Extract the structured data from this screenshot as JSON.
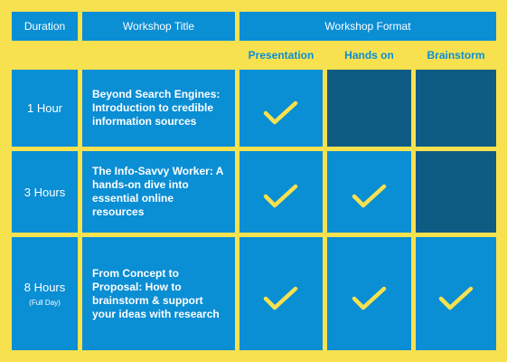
{
  "colors": {
    "border": "#f7e14f",
    "cell": "#0a8ed4",
    "cell_dark": "#0e5c84",
    "text": "#ffffff",
    "check": "#f7e14f"
  },
  "header": {
    "duration": "Duration",
    "title": "Workshop Title",
    "format": "Workshop Format"
  },
  "formats": [
    "Presentation",
    "Hands on",
    "Brainstorm"
  ],
  "rows": [
    {
      "duration": "1 Hour",
      "note": "",
      "title": "Beyond Search Engines: Introduction to credible information sources",
      "presentation": true,
      "hands_on": false,
      "brainstorm": false
    },
    {
      "duration": "3 Hours",
      "note": "",
      "title": "The Info-Savvy Worker: A hands-on dive into essential online resources",
      "presentation": true,
      "hands_on": true,
      "brainstorm": false
    },
    {
      "duration": "8 Hours",
      "note": "(Full Day)",
      "title": "From Concept to Proposal: How to brainstorm & support your ideas with research",
      "presentation": true,
      "hands_on": true,
      "brainstorm": true
    }
  ],
  "icons": {
    "included": "checkmark-icon"
  }
}
